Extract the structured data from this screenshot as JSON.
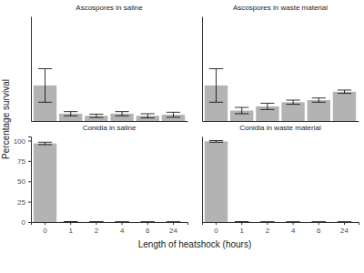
{
  "chart_data": {
    "type": "bar",
    "xlabel": "Length of heatshock (hours)",
    "ylabel": "Percentage survival",
    "color": "#b3b3b3",
    "categories": [
      "0",
      "1",
      "2",
      "4",
      "6",
      "24"
    ],
    "panels": [
      {
        "title": "Ascospores in saline",
        "values": [
          17,
          3.5,
          2.5,
          3.5,
          2.5,
          3
        ],
        "errors": [
          8,
          1,
          0.8,
          1,
          1,
          1.2
        ],
        "ylim": [
          0,
          50
        ],
        "tick_labels": false
      },
      {
        "title": "Ascospores in waste material",
        "values": [
          17,
          5,
          7,
          9,
          10,
          14
        ],
        "errors": [
          8,
          1.5,
          1.5,
          1,
          1,
          0.8
        ],
        "ylim": [
          0,
          50
        ],
        "tick_labels": false
      },
      {
        "title": "Conidia in saline",
        "values": [
          96.5,
          0.3,
          0.2,
          0.1,
          0.1,
          0.1
        ],
        "errors": [
          1.5,
          0.1,
          0.1,
          0.1,
          0.1,
          0.1
        ],
        "ylim": [
          0,
          105
        ],
        "yticks": [
          0,
          25,
          50,
          75,
          100
        ]
      },
      {
        "title": "Conidia in waste material",
        "values": [
          99,
          0.2,
          0.1,
          0.1,
          0.1,
          0.1
        ],
        "errors": [
          1,
          0.1,
          0.1,
          0.1,
          0.1,
          0.1
        ],
        "ylim": [
          0,
          105
        ],
        "yticks": [
          0,
          25,
          50,
          75,
          100
        ],
        "tick_labels": "x"
      }
    ]
  }
}
